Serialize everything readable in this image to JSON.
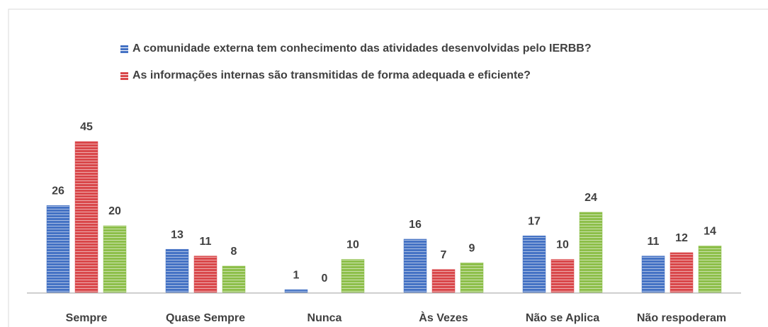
{
  "chart_data": {
    "type": "bar",
    "categories": [
      "Sempre",
      "Quase Sempre",
      "Nunca",
      "Às Vezes",
      "Não se Aplica",
      "Não respoderam"
    ],
    "series": [
      {
        "name": "A comunidade externa tem conhecimento das atividades desenvolvidas pelo IERBB?",
        "color": "#4472c4",
        "values": [
          26,
          13,
          1,
          16,
          17,
          11
        ]
      },
      {
        "name": "As informações  internas são transmitidas de forma adequada e eficiente?",
        "color": "#d9474a",
        "values": [
          45,
          11,
          0,
          7,
          10,
          12
        ]
      },
      {
        "color": "#8dbf4a",
        "values": [
          20,
          8,
          10,
          9,
          24,
          14
        ]
      }
    ]
  }
}
